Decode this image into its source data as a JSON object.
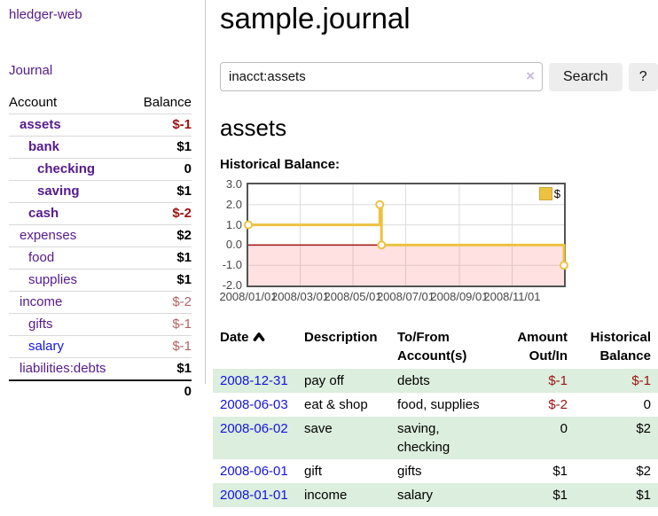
{
  "colors": {
    "link_purple": "#551a8b",
    "link_blue": "#1414e0",
    "negative_strong": "#9d1111",
    "negative_muted": "#b26262",
    "row_stripe_green": "#dceedd",
    "chart_line": "#edc240",
    "chart_zero_line": "#a01212",
    "chart_border": "#545454",
    "chart_grid": "#dcdcdc",
    "chart_negative_fill": "rgba(255,90,90,0.18)"
  },
  "sidebar": {
    "brand": "hledger-web",
    "journal_link": "Journal",
    "accounts": {
      "header_account": "Account",
      "header_balance": "Balance",
      "rows": [
        {
          "name": "assets",
          "balance": "$-1"
        },
        {
          "name": "bank",
          "balance": "$1"
        },
        {
          "name": "checking",
          "balance": "0"
        },
        {
          "name": "saving",
          "balance": "$1"
        },
        {
          "name": "cash",
          "balance": "$-2"
        },
        {
          "name": "expenses",
          "balance": "$2"
        },
        {
          "name": "food",
          "balance": "$1"
        },
        {
          "name": "supplies",
          "balance": "$1"
        },
        {
          "name": "income",
          "balance": "$-2"
        },
        {
          "name": "gifts",
          "balance": "$-1"
        },
        {
          "name": "salary",
          "balance": "$-1"
        },
        {
          "name": "liabilities:debts",
          "balance": "$1"
        }
      ],
      "total": "0"
    }
  },
  "main": {
    "title": "sample.journal",
    "search": {
      "value": "inacct:assets",
      "clear": "×",
      "search_button": "Search",
      "help_button": "?"
    },
    "account_heading": "assets",
    "chart_title": "Historical Balance:"
  },
  "chart_data": {
    "type": "line",
    "step": true,
    "title": "Historical Balance",
    "series": [
      {
        "name": "$",
        "color": "#edc240",
        "points": [
          [
            "2008-01-01",
            1.0
          ],
          [
            "2008-06-01",
            2.0
          ],
          [
            "2008-06-03",
            0.0
          ],
          [
            "2008-12-31",
            -1.0
          ]
        ]
      }
    ],
    "x_range": [
      "2008-01-01",
      "2008-12-31"
    ],
    "ylim": [
      -2.0,
      3.0
    ],
    "y_ticks": [
      "3.0",
      "2.0",
      "1.0",
      "0.0",
      "-1.0",
      "-2.0"
    ],
    "x_ticks": [
      "2008/01/01",
      "2008/03/01",
      "2008/05/01",
      "2008/07/01",
      "2008/09/01",
      "2008/11/01"
    ],
    "legend": {
      "label": "$",
      "position": "top-right"
    },
    "grid": true,
    "negative_region": true
  },
  "register": {
    "headers": {
      "date": "Date",
      "description": "Description",
      "tofrom": "To/From Account(s)",
      "amount": "Amount Out/In",
      "balance": "Historical Balance"
    },
    "rows": [
      {
        "date": "2008-12-31",
        "description": "pay off",
        "tofrom": "debts",
        "amount": "$-1",
        "balance": "$-1"
      },
      {
        "date": "2008-06-03",
        "description": "eat & shop",
        "tofrom": "food, supplies",
        "amount": "$-2",
        "balance": "0"
      },
      {
        "date": "2008-06-02",
        "description": "save",
        "tofrom": "saving, checking",
        "amount": "0",
        "balance": "$2"
      },
      {
        "date": "2008-06-01",
        "description": "gift",
        "tofrom": "gifts",
        "amount": "$1",
        "balance": "$2"
      },
      {
        "date": "2008-01-01",
        "description": "income",
        "tofrom": "salary",
        "amount": "$1",
        "balance": "$1"
      }
    ]
  }
}
